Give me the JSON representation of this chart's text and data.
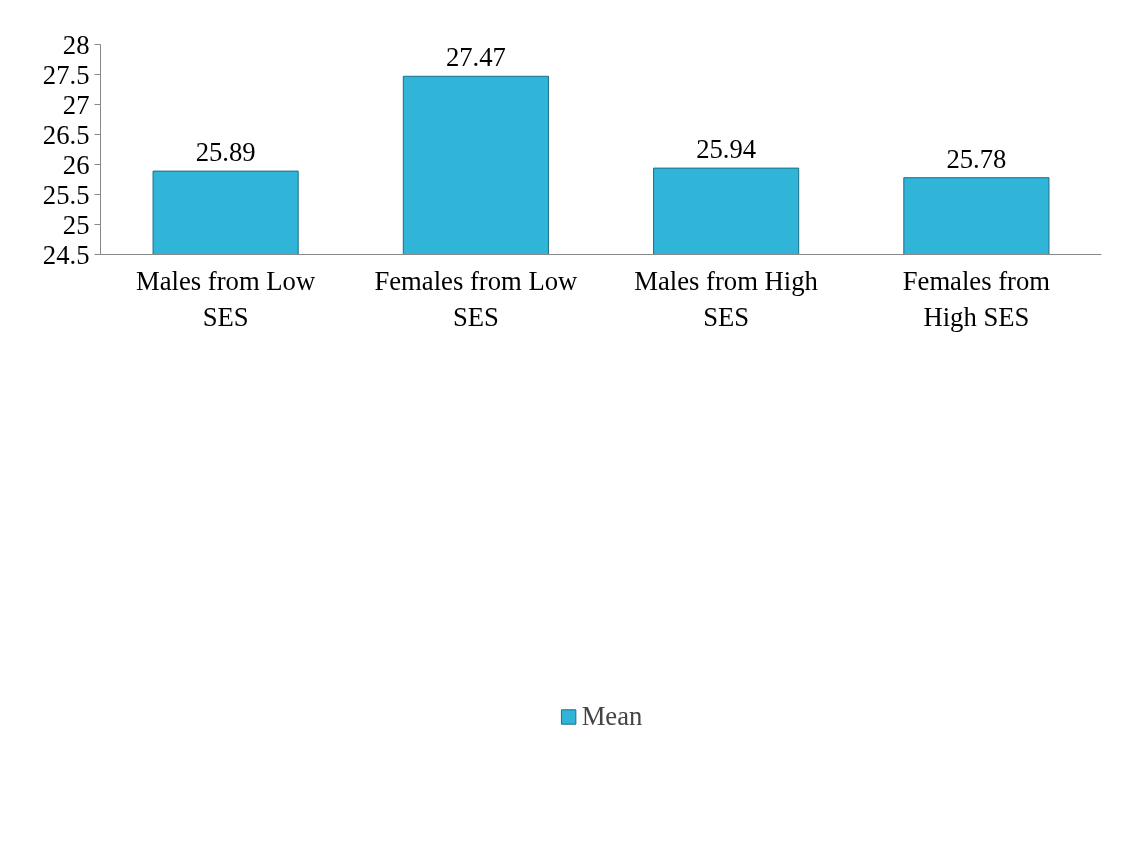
{
  "chart_data": {
    "type": "bar",
    "categories": [
      "Males from Low SES",
      "Females from Low SES",
      "Males from High SES",
      "Females from High SES"
    ],
    "series": [
      {
        "name": "Mean",
        "color": "#30b4d8",
        "values": [
          25.89,
          27.47,
          25.94,
          25.78
        ]
      }
    ],
    "ylim": [
      24.5,
      28
    ],
    "yticks": [
      24.5,
      25,
      25.5,
      26,
      26.5,
      27,
      27.5,
      28
    ],
    "data_labels": true,
    "grid": false,
    "legend": "bottom"
  }
}
